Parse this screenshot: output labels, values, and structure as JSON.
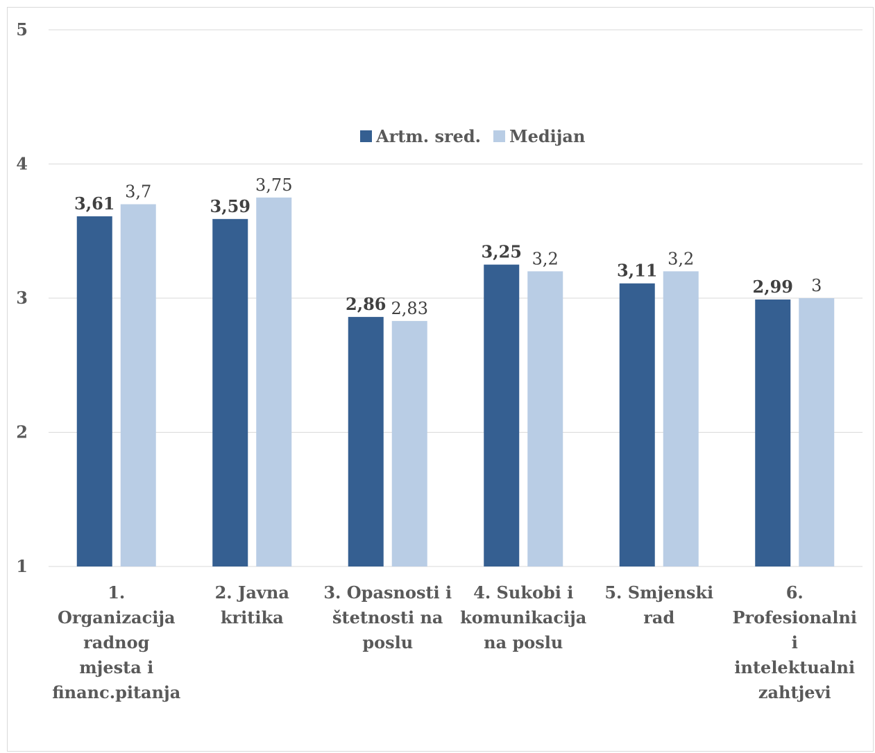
{
  "chart_data": {
    "type": "bar",
    "categories": [
      "1. Organizacija radnog mjesta i financ.pitanja",
      "2. Javna kritika",
      "3. Opasnosti i štetnosti na poslu",
      "4. Sukobi i komunikacija na poslu",
      "5. Smjenski rad",
      "6. Profesionalni i intelektualni zahtjevi"
    ],
    "category_label_lines": [
      [
        "1.",
        "Organizacija",
        "radnog",
        "mjesta i",
        "financ.pitanja"
      ],
      [
        "2. Javna",
        "kritika"
      ],
      [
        "3. Opasnosti i",
        "štetnosti na",
        "poslu"
      ],
      [
        "4. Sukobi i",
        "komunikacija",
        "na poslu"
      ],
      [
        "5. Smjenski",
        "rad"
      ],
      [
        "6.",
        "Profesionalni",
        "i",
        "intelektualni",
        "zahtjevi"
      ]
    ],
    "series": [
      {
        "name": "Artm. sred.",
        "color": "#355f91",
        "values": [
          3.61,
          3.59,
          2.86,
          3.25,
          3.11,
          2.99
        ],
        "labels": [
          "3,61",
          "3,59",
          "2,86",
          "3,25",
          "3,11",
          "2,99"
        ],
        "label_bold": true
      },
      {
        "name": "Medijan",
        "color": "#b9cde5",
        "values": [
          3.7,
          3.75,
          2.83,
          3.2,
          3.2,
          3
        ],
        "labels": [
          "3,7",
          "3,75",
          "2,83",
          "3,2",
          "3,2",
          "3"
        ],
        "label_bold": false
      }
    ],
    "y_ticks": [
      1,
      2,
      3,
      4,
      5
    ],
    "y_tick_labels": [
      "1",
      "2",
      "3",
      "4",
      "5"
    ],
    "ylim": [
      1,
      5
    ],
    "grid": true,
    "gridline_color": "#d9d9d9",
    "legend_position": "top-center",
    "title": "",
    "xlabel": "",
    "ylabel": ""
  }
}
